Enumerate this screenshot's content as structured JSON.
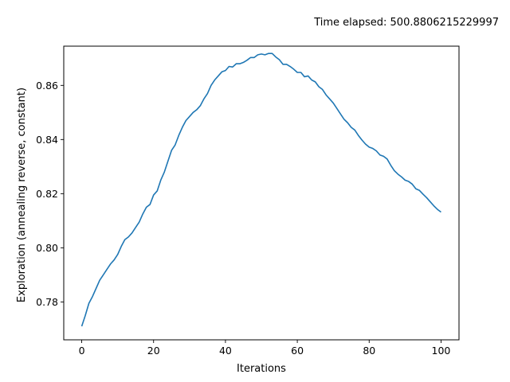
{
  "chart_data": {
    "type": "line",
    "title": "Time elapsed: 500.8806215229997",
    "xlabel": "Iterations",
    "ylabel": "Exploration (annealing reverse, constant)",
    "xlim": [
      -5,
      105
    ],
    "ylim": [
      0.766,
      0.8745
    ],
    "xticks": [
      0,
      20,
      40,
      60,
      80,
      100
    ],
    "xtick_labels": [
      "0",
      "20",
      "40",
      "60",
      "80",
      "100"
    ],
    "yticks": [
      0.78,
      0.8,
      0.82,
      0.84,
      0.86
    ],
    "ytick_labels": [
      "0.78",
      "0.80",
      "0.82",
      "0.84",
      "0.86"
    ],
    "grid": false,
    "series": [
      {
        "color": "#1f77b4",
        "x": [
          0,
          1,
          2,
          3,
          4,
          5,
          6,
          7,
          8,
          9,
          10,
          11,
          12,
          13,
          14,
          15,
          16,
          17,
          18,
          19,
          20,
          21,
          22,
          23,
          24,
          25,
          26,
          27,
          28,
          29,
          30,
          31,
          32,
          33,
          34,
          35,
          36,
          37,
          38,
          39,
          40,
          41,
          42,
          43,
          44,
          45,
          46,
          47,
          48,
          49,
          50,
          51,
          52,
          53,
          54,
          55,
          56,
          57,
          58,
          59,
          60,
          61,
          62,
          63,
          64,
          65,
          66,
          67,
          68,
          69,
          70,
          71,
          72,
          73,
          74,
          75,
          76,
          77,
          78,
          79,
          80,
          81,
          82,
          83,
          84,
          85,
          86,
          87,
          88,
          89,
          90,
          91,
          92,
          93,
          94,
          95,
          96,
          97,
          98,
          99,
          100
        ],
        "y": [
          0.771,
          0.775,
          0.7795,
          0.782,
          0.785,
          0.788,
          0.79,
          0.792,
          0.794,
          0.7955,
          0.7975,
          0.8005,
          0.803,
          0.804,
          0.8055,
          0.8075,
          0.8095,
          0.8125,
          0.815,
          0.816,
          0.8195,
          0.821,
          0.825,
          0.828,
          0.832,
          0.836,
          0.838,
          0.8415,
          0.8445,
          0.847,
          0.8485,
          0.85,
          0.851,
          0.8525,
          0.855,
          0.857,
          0.86,
          0.862,
          0.8635,
          0.865,
          0.8655,
          0.867,
          0.8668,
          0.868,
          0.868,
          0.8685,
          0.8693,
          0.8703,
          0.8703,
          0.8713,
          0.8716,
          0.8713,
          0.8718,
          0.8718,
          0.8705,
          0.8695,
          0.8678,
          0.8678,
          0.867,
          0.866,
          0.8648,
          0.8648,
          0.8632,
          0.8635,
          0.862,
          0.8613,
          0.8595,
          0.8585,
          0.8565,
          0.855,
          0.8535,
          0.8515,
          0.8495,
          0.8475,
          0.8462,
          0.8445,
          0.8435,
          0.8415,
          0.8398,
          0.8383,
          0.8372,
          0.8367,
          0.8358,
          0.8343,
          0.8338,
          0.8328,
          0.8305,
          0.8285,
          0.8272,
          0.8262,
          0.825,
          0.8245,
          0.8235,
          0.8218,
          0.8212,
          0.8198,
          0.8185,
          0.817,
          0.8155,
          0.8142,
          0.8132
        ]
      }
    ]
  }
}
